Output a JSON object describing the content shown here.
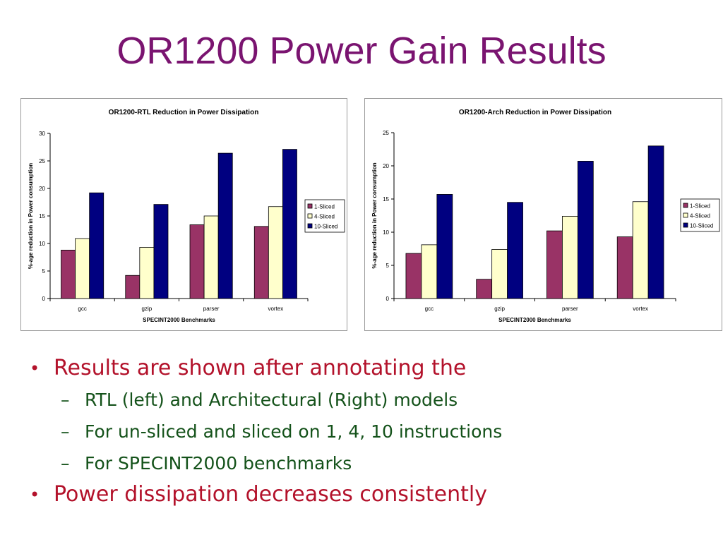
{
  "slide": {
    "title": "OR1200 Power Gain Results"
  },
  "bullets": {
    "b1": "Results are shown after annotating the",
    "b1_sub": [
      "RTL (left) and Architectural (Right) models",
      "For un-sliced and sliced on 1, 4, 10 instructions",
      "For SPECINT2000 benchmarks"
    ],
    "b2": "Power dissipation decreases consistently",
    "bullet_symbol": "•",
    "dash_symbol": "–"
  },
  "colors": {
    "title": "#7a1470",
    "bullet_text": "#b3122b",
    "sub_bullet_text": "#14521a",
    "series": [
      "#993366",
      "#ffffcc",
      "#000080"
    ]
  },
  "chart_data": [
    {
      "type": "bar",
      "title": "OR1200-RTL Reduction in Power Dissipation",
      "xlabel": "SPECINT2000 Benchmarks",
      "ylabel": "%-age reduction in Power consumption",
      "categories": [
        "gcc",
        "gzip",
        "parser",
        "vortex"
      ],
      "series": [
        {
          "name": "1-Sliced",
          "values": [
            8.8,
            4.2,
            13.4,
            13.1
          ]
        },
        {
          "name": "4-Sliced",
          "values": [
            10.9,
            9.3,
            15.0,
            16.7
          ]
        },
        {
          "name": "10-Sliced",
          "values": [
            19.2,
            17.1,
            26.4,
            27.1
          ]
        }
      ],
      "ylim": [
        0,
        30
      ],
      "yticks": [
        0,
        5,
        10,
        15,
        20,
        25,
        30
      ],
      "legend": "right",
      "grid": false
    },
    {
      "type": "bar",
      "title": "OR1200-Arch Reduction in Power Dissipation",
      "xlabel": "SPECINT2000 Benchmarks",
      "ylabel": "%-age reduction in Power consumption",
      "categories": [
        "gcc",
        "gzip",
        "parser",
        "vortex"
      ],
      "series": [
        {
          "name": "1-Sliced",
          "values": [
            6.8,
            2.9,
            10.2,
            9.3
          ]
        },
        {
          "name": "4-Sliced",
          "values": [
            8.1,
            7.4,
            12.4,
            14.6
          ]
        },
        {
          "name": "10-Sliced",
          "values": [
            15.7,
            14.5,
            20.7,
            23.0
          ]
        }
      ],
      "ylim": [
        0,
        25
      ],
      "yticks": [
        0,
        5,
        10,
        15,
        20,
        25
      ],
      "legend": "right",
      "grid": false
    }
  ]
}
